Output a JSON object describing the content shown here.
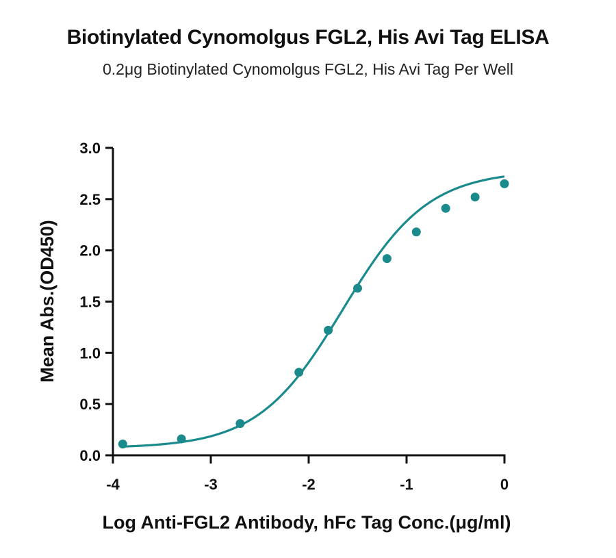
{
  "chart_data": {
    "type": "scatter",
    "title": "Biotinylated Cynomolgus FGL2, His Avi Tag ELISA",
    "subtitle": "0.2μg Biotinylated Cynomolgus FGL2, His Avi Tag Per Well",
    "xlabel": "Log Anti-FGL2 Antibody, hFc Tag Conc.(μg/ml)",
    "ylabel": "Mean Abs.(OD450)",
    "xlim": [
      -4,
      0
    ],
    "ylim": [
      0,
      3.0
    ],
    "xticks": [
      "-4",
      "-3",
      "-2",
      "-1",
      "0"
    ],
    "yticks": [
      "0.0",
      "0.5",
      "1.0",
      "1.5",
      "2.0",
      "2.5",
      "3.0"
    ],
    "grid": false,
    "legend": "none",
    "series": [
      {
        "color": "#1b8a8c",
        "points": [
          {
            "x": -3.9,
            "y": 0.11
          },
          {
            "x": -3.3,
            "y": 0.16
          },
          {
            "x": -2.7,
            "y": 0.31
          },
          {
            "x": -2.1,
            "y": 0.81
          },
          {
            "x": -1.8,
            "y": 1.22
          },
          {
            "x": -1.5,
            "y": 1.63
          },
          {
            "x": -1.2,
            "y": 1.92
          },
          {
            "x": -0.9,
            "y": 2.18
          },
          {
            "x": -0.6,
            "y": 2.41
          },
          {
            "x": -0.3,
            "y": 2.52
          },
          {
            "x": 0.0,
            "y": 2.65
          }
        ],
        "fit": {
          "model": "4PL",
          "bottom": 0.07,
          "top": 2.78,
          "logEC50": -1.65,
          "hill": 1.0
        }
      }
    ]
  }
}
